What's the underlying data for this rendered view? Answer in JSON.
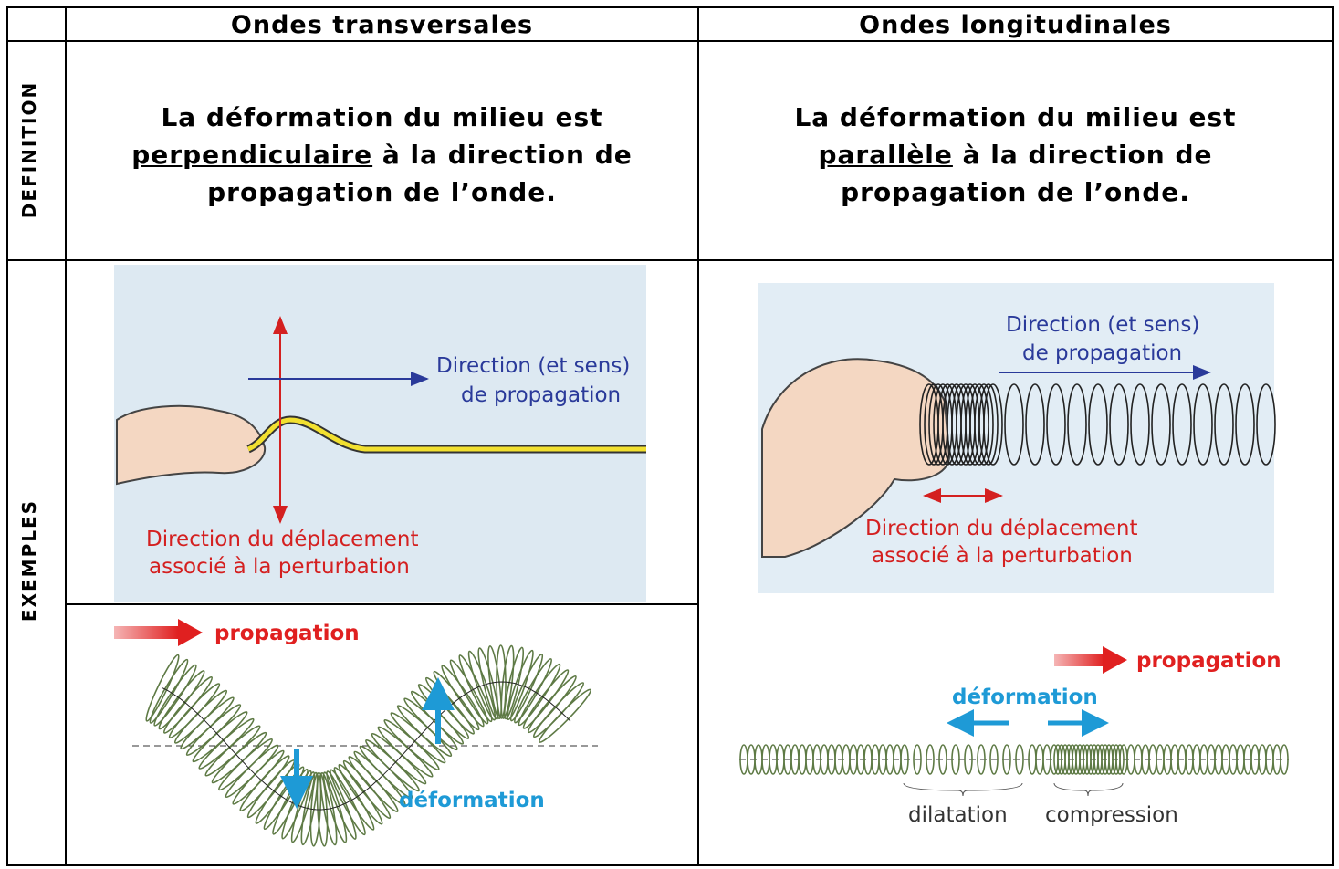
{
  "table": {
    "headers": [
      "Ondes transversales",
      "Ondes longitudinales"
    ],
    "rows": [
      {
        "label": "DEFINITION",
        "cells": [
          {
            "line1": "La déformation du milieu est",
            "emphasis": "perpendiculaire",
            "line2": "à la direction de",
            "line3": "propagation de l’onde."
          },
          {
            "line1": "La déformation du milieu est",
            "emphasis": "parallèle",
            "line2": "à la direction de",
            "line3": "propagation de l’onde."
          }
        ]
      },
      {
        "label": "EXEMPLES"
      }
    ]
  },
  "figures": {
    "transverse_hand": {
      "propagation": [
        "Direction (et sens)",
        "de propagation"
      ],
      "displacement": [
        "Direction du déplacement",
        "associé à la perturbation"
      ]
    },
    "transverse_spring": {
      "propagation": "propagation",
      "deformation": "déformation"
    },
    "longitudinal_hand": {
      "propagation": [
        "Direction (et sens)",
        "de propagation"
      ],
      "displacement": [
        "Direction du déplacement",
        "associé à la perturbation"
      ]
    },
    "longitudinal_spring": {
      "propagation": "propagation",
      "deformation": "déformation",
      "dilatation": "dilatation",
      "compression": "compression"
    }
  }
}
